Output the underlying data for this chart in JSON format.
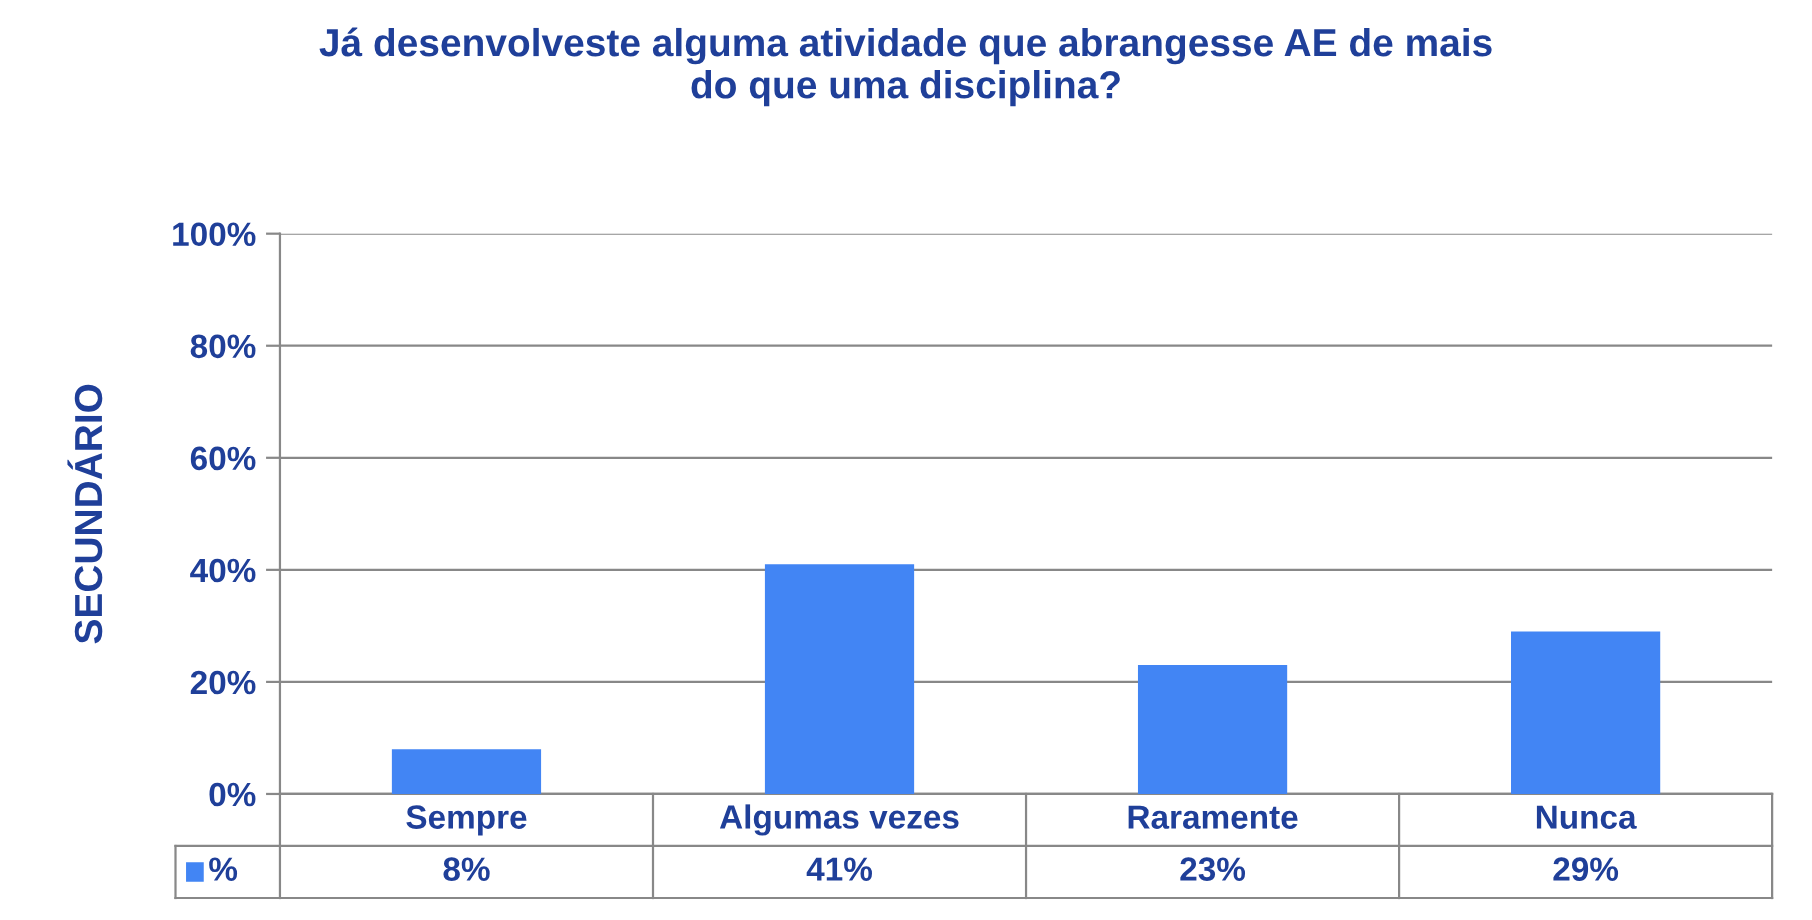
{
  "chart_data": {
    "type": "bar",
    "title": "Já desenvolveste alguma atividade que abrangesse AE de mais\ndo que uma disciplina?",
    "ylabel": "SECUNDÁRIO",
    "categories": [
      "Sempre",
      "Algumas vezes",
      "Raramente",
      "Nunca"
    ],
    "series": [
      {
        "name": "%",
        "color": "#4285f4",
        "values": [
          8,
          41,
          23,
          29
        ]
      }
    ],
    "value_labels": [
      "8%",
      "41%",
      "23%",
      "29%"
    ],
    "ylim": [
      0,
      100
    ],
    "yticks": [
      {
        "value": 0,
        "label": "0%"
      },
      {
        "value": 20,
        "label": "20%"
      },
      {
        "value": 40,
        "label": "40%"
      },
      {
        "value": 60,
        "label": "60%"
      },
      {
        "value": 80,
        "label": "80%"
      },
      {
        "value": 100,
        "label": "100%"
      }
    ],
    "grid": "y",
    "legend": "bottom"
  }
}
